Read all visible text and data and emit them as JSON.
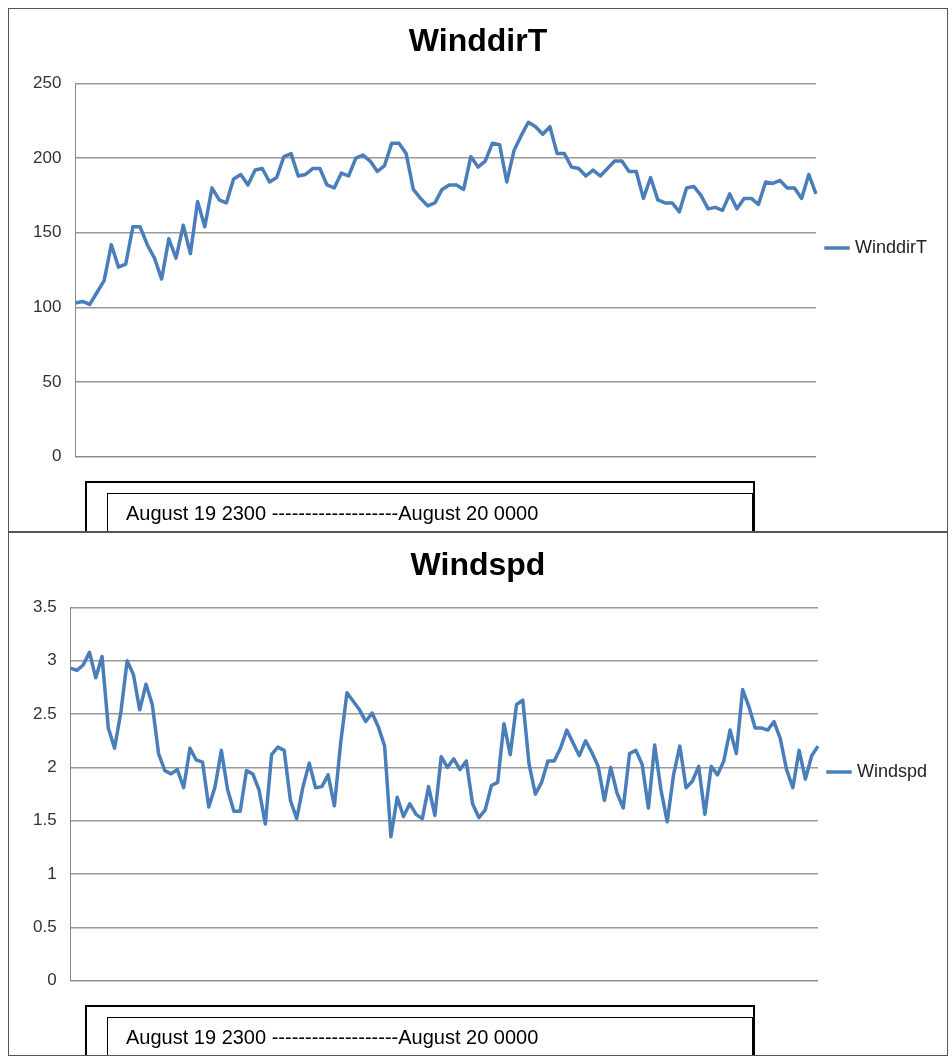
{
  "chart_data": [
    {
      "type": "line",
      "title": "WinddirT",
      "xlabel": "August 19 2300 -------------------August 20 0000",
      "categories": [
        null,
        null,
        null,
        null,
        null,
        null,
        null,
        null,
        null,
        null,
        null,
        null,
        null,
        null,
        null,
        null,
        null,
        null,
        null,
        null,
        null,
        null,
        null,
        null,
        null,
        null,
        null,
        null,
        null,
        null,
        null,
        null,
        null,
        null,
        null,
        null,
        null,
        null,
        null,
        null,
        null,
        null,
        null,
        null,
        null,
        null,
        null,
        null,
        null,
        null,
        null,
        null,
        null,
        null,
        null,
        null,
        null,
        null,
        null,
        null,
        null,
        null,
        null,
        null,
        null,
        null,
        null,
        null,
        null,
        null,
        null,
        null,
        null,
        null,
        null,
        null,
        null,
        null,
        null,
        null,
        null,
        null,
        null,
        null,
        null,
        null,
        null,
        null,
        null,
        null,
        null,
        null,
        null,
        null,
        null,
        null,
        null,
        null,
        null,
        null,
        null,
        null,
        null,
        null
      ],
      "series": [
        {
          "name": "WinddirT",
          "color": "#4a7ebb",
          "values": [
            103,
            104,
            102,
            110,
            118,
            142,
            127,
            129,
            154,
            154,
            142,
            133,
            119,
            146,
            133,
            155,
            136,
            171,
            154,
            180,
            172,
            170,
            186,
            189,
            182,
            192,
            193,
            184,
            187,
            201,
            203,
            188,
            189,
            193,
            193,
            182,
            180,
            190,
            188,
            200,
            202,
            198,
            191,
            195,
            210,
            210,
            203,
            179,
            173,
            168,
            170,
            179,
            182,
            182,
            179,
            201,
            194,
            198,
            210,
            209,
            184,
            205,
            215,
            224,
            221,
            216,
            221,
            203,
            203,
            194,
            193,
            188,
            192,
            188,
            193,
            198,
            198,
            191,
            191,
            173,
            187,
            172,
            170,
            170,
            164,
            180,
            181,
            175,
            166,
            167,
            165,
            176,
            166,
            173,
            173,
            169,
            184,
            183,
            185,
            180,
            180,
            173,
            189,
            176
          ]
        }
      ],
      "ylim": [
        0,
        250
      ],
      "yticks": [
        0,
        50,
        100,
        150,
        200,
        250
      ],
      "grid": "y",
      "legend": "right",
      "tick_labels": "y",
      "marker": "none",
      "line_style": "solid"
    },
    {
      "type": "line",
      "title": "Windspd",
      "xlabel": "August 19 2300 -------------------August 20 0000",
      "categories": [
        null,
        null,
        null,
        null,
        null,
        null,
        null,
        null,
        null,
        null,
        null,
        null,
        null,
        null,
        null,
        null,
        null,
        null,
        null,
        null,
        null,
        null,
        null,
        null,
        null,
        null,
        null,
        null,
        null,
        null,
        null,
        null,
        null,
        null,
        null,
        null,
        null,
        null,
        null,
        null,
        null,
        null,
        null,
        null,
        null,
        null,
        null,
        null,
        null,
        null,
        null,
        null,
        null,
        null,
        null,
        null,
        null,
        null,
        null,
        null,
        null,
        null,
        null,
        null,
        null,
        null,
        null,
        null,
        null,
        null,
        null,
        null,
        null,
        null,
        null,
        null,
        null,
        null,
        null,
        null,
        null,
        null,
        null,
        null,
        null,
        null,
        null,
        null,
        null,
        null,
        null,
        null,
        null,
        null,
        null,
        null,
        null,
        null,
        null,
        null,
        null,
        null,
        null,
        null,
        null,
        null,
        null,
        null,
        null,
        null,
        null,
        null,
        null,
        null,
        null,
        null,
        null,
        null,
        null,
        null
      ],
      "series": [
        {
          "name": "Windspd",
          "color": "#4a7ebb",
          "values": [
            2.93,
            2.91,
            2.96,
            3.08,
            2.84,
            3.04,
            2.37,
            2.18,
            2.52,
            3.0,
            2.87,
            2.54,
            2.78,
            2.59,
            2.13,
            1.97,
            1.94,
            1.98,
            1.81,
            2.18,
            2.07,
            2.05,
            1.63,
            1.82,
            2.16,
            1.79,
            1.59,
            1.59,
            1.97,
            1.94,
            1.79,
            1.47,
            2.12,
            2.19,
            2.16,
            1.69,
            1.52,
            1.82,
            2.04,
            1.81,
            1.82,
            1.93,
            1.64,
            2.23,
            2.7,
            2.62,
            2.54,
            2.43,
            2.51,
            2.38,
            2.2,
            1.35,
            1.72,
            1.54,
            1.66,
            1.56,
            1.52,
            1.82,
            1.55,
            2.1,
            2.0,
            2.08,
            1.98,
            2.06,
            1.66,
            1.53,
            1.6,
            1.83,
            1.86,
            2.41,
            2.12,
            2.59,
            2.63,
            2.03,
            1.75,
            1.86,
            2.06,
            2.06,
            2.18,
            2.35,
            2.23,
            2.11,
            2.25,
            2.14,
            2.01,
            1.69,
            2.0,
            1.76,
            1.62,
            2.13,
            2.16,
            2.03,
            1.62,
            2.21,
            1.79,
            1.49,
            1.93,
            2.2,
            1.81,
            1.87,
            2.01,
            1.56,
            2.01,
            1.93,
            2.06,
            2.35,
            2.13,
            2.73,
            2.57,
            2.37,
            2.37,
            2.35,
            2.43,
            2.27,
            1.98,
            1.81,
            2.16,
            1.89,
            2.11,
            2.2
          ]
        }
      ],
      "ylim": [
        0,
        3.5
      ],
      "yticks": [
        0,
        0.5,
        1,
        1.5,
        2,
        2.5,
        3,
        3.5
      ],
      "grid": "y",
      "legend": "right",
      "tick_labels": "y",
      "marker": "none",
      "line_style": "solid"
    }
  ]
}
